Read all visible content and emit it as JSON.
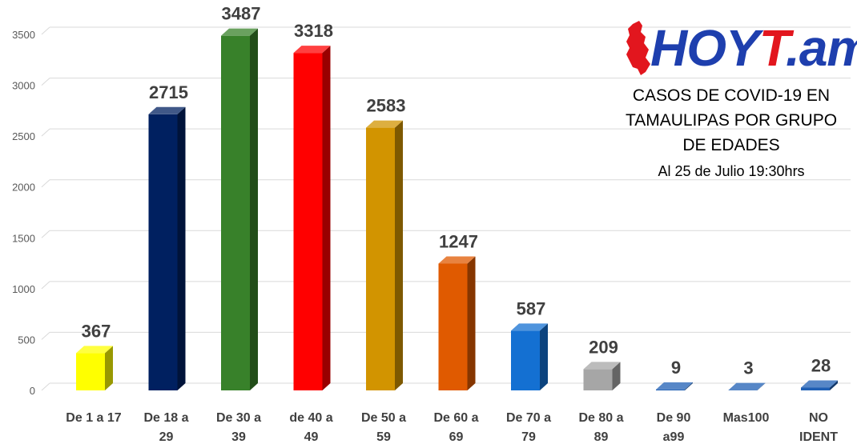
{
  "chart_data": {
    "type": "bar",
    "title_lines": [
      "CASOS DE COVID-19 EN",
      "TAMAULIPAS POR GRUPO",
      "DE EDADES"
    ],
    "subtitle": "Al 25 de Julio 19:30hrs",
    "categories": [
      [
        "De 1 a 17"
      ],
      [
        "De 18 a",
        "29"
      ],
      [
        "De 30 a",
        "39"
      ],
      [
        "de 40 a",
        "49"
      ],
      [
        "De 50 a",
        "59"
      ],
      [
        "De 60 a",
        "69"
      ],
      [
        "De 70 a",
        "79"
      ],
      [
        "De 80 a",
        "89"
      ],
      [
        "De 90",
        "a99"
      ],
      [
        "Mas100"
      ],
      [
        "NO",
        "IDENT"
      ]
    ],
    "values": [
      367,
      2715,
      3487,
      3318,
      2583,
      1247,
      587,
      209,
      9,
      3,
      28
    ],
    "bar_colors": [
      "#ffff00",
      "#002060",
      "#38812a",
      "#ff0000",
      "#d29400",
      "#e05a00",
      "#1470d2",
      "#a6a6a6",
      "#1f5fb4",
      "#1f5fb4",
      "#1f5fb4"
    ],
    "y_ticks": [
      0,
      500,
      1000,
      1500,
      2000,
      2500,
      3000,
      3500
    ],
    "ylim": [
      0,
      3500
    ],
    "grid": true,
    "legend": "none",
    "xlabel": "",
    "ylabel": ""
  },
  "logo": {
    "part1": "HOY",
    "part2": "T",
    "part3": ".am",
    "color_part1": "#1e3fae",
    "color_part2": "#e2161e",
    "color_part3": "#1e3fae"
  }
}
